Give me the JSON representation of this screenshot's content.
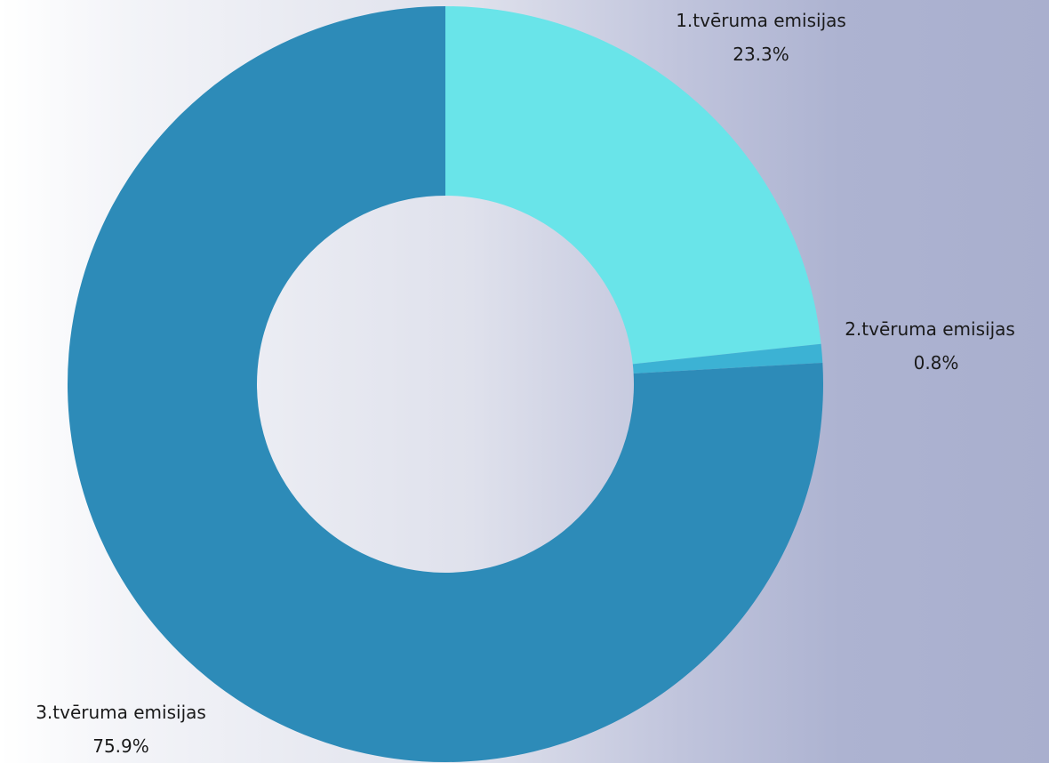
{
  "chart_data": {
    "type": "pie",
    "donut": true,
    "title": "",
    "slices": [
      {
        "label": "1.tvēruma emisijas",
        "percent_label": "23.3%",
        "value": 23.3,
        "color": "#69e4e9"
      },
      {
        "label": "2.tvēruma emisijas",
        "percent_label": "0.8%",
        "value": 0.8,
        "color": "#3cb2d4"
      },
      {
        "label": "3.tvēruma emisijas",
        "percent_label": "75.9%",
        "value": 75.9,
        "color": "#2d8bb8"
      }
    ],
    "legend": "none"
  }
}
